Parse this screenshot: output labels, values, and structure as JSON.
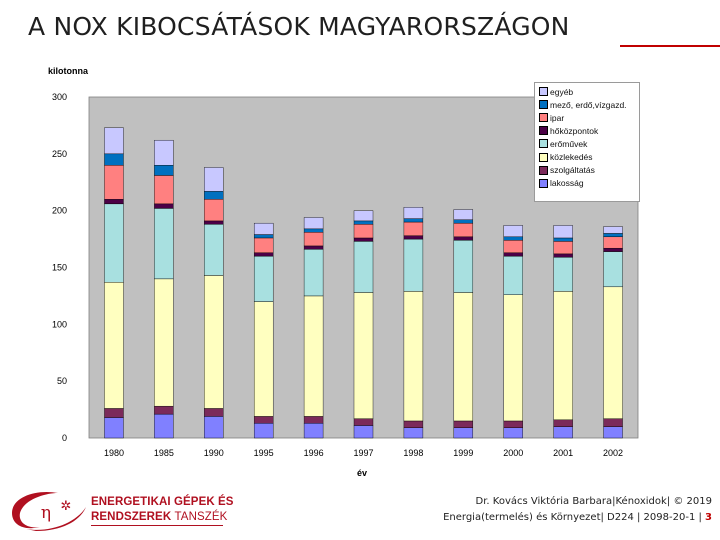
{
  "slide": {
    "title": "A NOX KIBOCSÁTÁSOK MAGYARORSZÁGON"
  },
  "footer": {
    "logo_line1": "ENERGETIKAI GÉPEK ÉS",
    "logo_line2a": "RENDSZEREK",
    "logo_line2b": "TANSZÉK",
    "author_line": "Dr. Kovács Viktória Barbara|Kénoxidok|  © 2019",
    "course_line": "Energia(termelés) és Környezet| D224 | 2098-20-1 | ",
    "page_number": "3"
  },
  "chart_data": {
    "type": "bar",
    "stacked": true,
    "ylabel": "kilotonna",
    "xlabel": "év",
    "ylim": [
      0,
      300
    ],
    "yticks": [
      0,
      50,
      100,
      150,
      200,
      250,
      300
    ],
    "grid": false,
    "legend_position": "top-right",
    "categories": [
      "1980",
      "1985",
      "1990",
      "1995",
      "1996",
      "1997",
      "1998",
      "1999",
      "2000",
      "2001",
      "2002"
    ],
    "series": [
      {
        "name": "lakosság",
        "color": "#8080ff",
        "values": [
          18,
          21,
          19,
          13,
          13,
          11,
          9,
          9,
          9,
          10,
          10
        ]
      },
      {
        "name": "szolgáltatás",
        "color": "#7b2a5a",
        "values": [
          8,
          7,
          7,
          6,
          6,
          6,
          6,
          6,
          6,
          6,
          7
        ]
      },
      {
        "name": "közlekedés",
        "color": "#ffffc0",
        "values": [
          111,
          112,
          117,
          101,
          106,
          111,
          114,
          113,
          111,
          113,
          116
        ]
      },
      {
        "name": "erőművek",
        "color": "#a8e0e0",
        "values": [
          69,
          62,
          45,
          40,
          41,
          45,
          46,
          46,
          34,
          30,
          31
        ]
      },
      {
        "name": "hőközpontok",
        "color": "#4b0046",
        "values": [
          4,
          4,
          3,
          3,
          3,
          3,
          3,
          3,
          3,
          3,
          3
        ]
      },
      {
        "name": "ipar",
        "color": "#ff8080",
        "values": [
          30,
          25,
          19,
          13,
          12,
          12,
          12,
          12,
          11,
          11,
          10
        ]
      },
      {
        "name": "mező, erdő,vízgazd.",
        "color": "#0070c0",
        "values": [
          10,
          9,
          7,
          3,
          3,
          3,
          3,
          3,
          3,
          3,
          3
        ]
      },
      {
        "name": "egyéb",
        "color": "#c8c8ff",
        "values": [
          23,
          22,
          21,
          10,
          10,
          9,
          10,
          9,
          10,
          11,
          6
        ]
      }
    ]
  }
}
